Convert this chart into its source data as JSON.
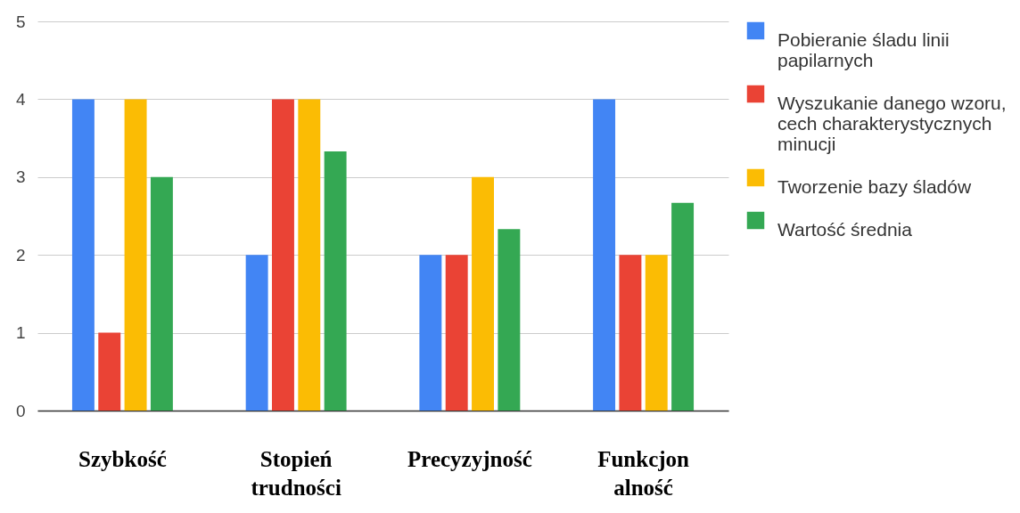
{
  "chart_data": {
    "type": "bar",
    "categories": [
      "Szybkość",
      "Stopień trudności",
      "Precyzyjność",
      "Funkcjon alność"
    ],
    "series": [
      {
        "name": "Pobieranie śladu linii papilarnych",
        "color": "#4285f4",
        "values": [
          4,
          2,
          2,
          4
        ]
      },
      {
        "name": "Wyszukanie danego wzoru, cech charakterystycznych minucji",
        "color": "#ea4335",
        "values": [
          1,
          4,
          2,
          2
        ]
      },
      {
        "name": "Tworzenie bazy śladów",
        "color": "#fbbc04",
        "values": [
          4,
          4,
          3,
          2
        ]
      },
      {
        "name": "Wartość średnia",
        "color": "#34a853",
        "values": [
          3,
          3.33,
          2.33,
          2.67
        ]
      }
    ],
    "ylim": [
      0,
      5
    ],
    "yticks": [
      0,
      1,
      2,
      3,
      4,
      5
    ],
    "grid": "y",
    "legend": "right"
  }
}
